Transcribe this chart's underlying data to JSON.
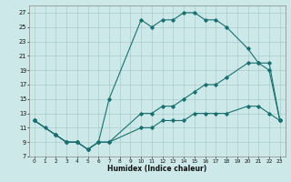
{
  "title": "",
  "xlabel": "Humidex (Indice chaleur)",
  "xlim": [
    -0.5,
    23.5
  ],
  "ylim": [
    7,
    28
  ],
  "xticks": [
    0,
    1,
    2,
    3,
    4,
    5,
    6,
    7,
    8,
    9,
    10,
    11,
    12,
    13,
    14,
    15,
    16,
    17,
    18,
    19,
    20,
    21,
    22,
    23
  ],
  "yticks": [
    7,
    9,
    11,
    13,
    15,
    17,
    19,
    21,
    23,
    25,
    27
  ],
  "background_color": "#cce8e8",
  "grid_color": "#aacccc",
  "line_color": "#1a7070",
  "line1_x": [
    0,
    1,
    2,
    3,
    4,
    5,
    6,
    7,
    10,
    11,
    12,
    13,
    14,
    15,
    16,
    17,
    18,
    20,
    21,
    22,
    23
  ],
  "line1_y": [
    12,
    11,
    10,
    9,
    9,
    8,
    9,
    15,
    26,
    25,
    26,
    26,
    27,
    27,
    26,
    26,
    25,
    22,
    20,
    19,
    12
  ],
  "line2_x": [
    0,
    2,
    3,
    4,
    5,
    6,
    7,
    10,
    11,
    12,
    13,
    14,
    15,
    16,
    17,
    18,
    20,
    21,
    22,
    23
  ],
  "line2_y": [
    12,
    10,
    9,
    9,
    8,
    9,
    9,
    13,
    13,
    14,
    14,
    15,
    16,
    17,
    17,
    18,
    20,
    20,
    20,
    12
  ],
  "line3_x": [
    0,
    2,
    3,
    4,
    5,
    6,
    7,
    10,
    11,
    12,
    13,
    14,
    15,
    16,
    17,
    18,
    20,
    21,
    22,
    23
  ],
  "line3_y": [
    12,
    10,
    9,
    9,
    8,
    9,
    9,
    11,
    11,
    12,
    12,
    12,
    13,
    13,
    13,
    13,
    14,
    14,
    13,
    12
  ]
}
